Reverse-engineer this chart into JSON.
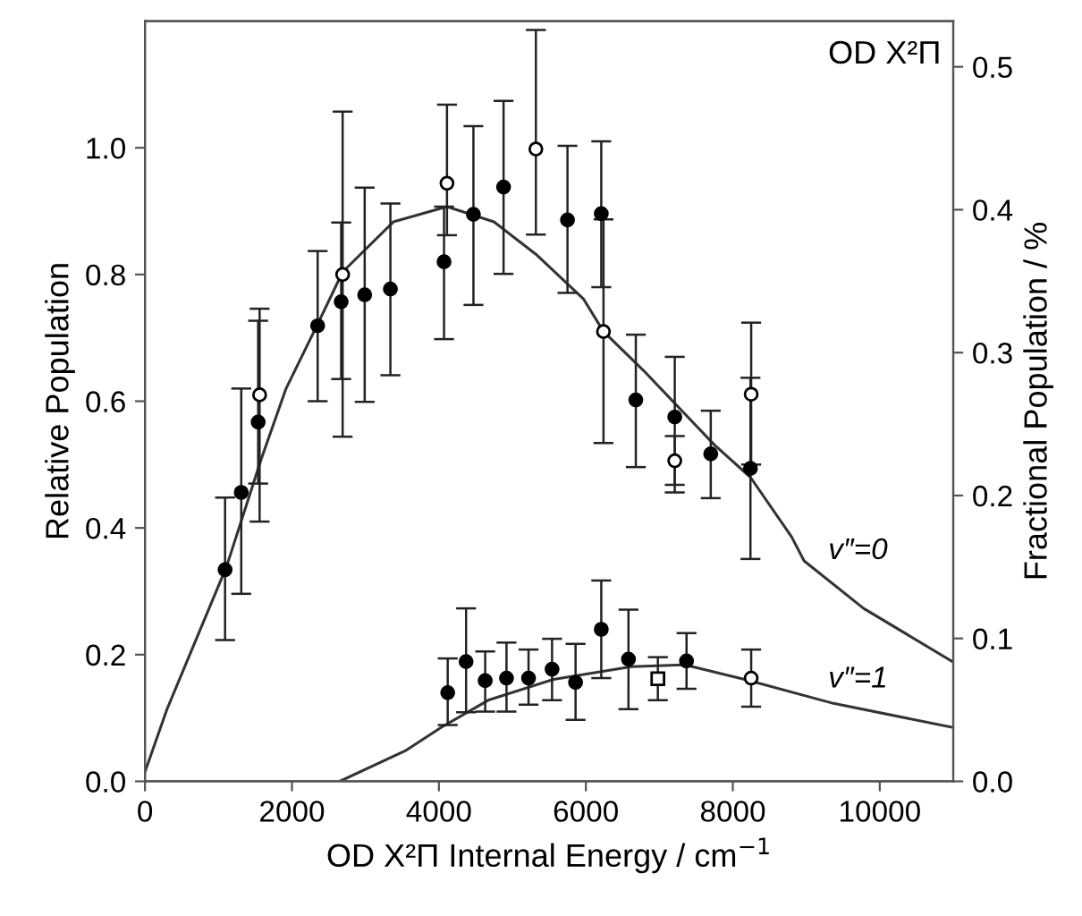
{
  "chart_data": {
    "type": "scatter",
    "xlabel": "OD X²Π Internal Energy / cm$^{−1}$",
    "ylabel": "Relative Population",
    "y2label": "Fractional Population / %",
    "xlim": [
      0,
      11000
    ],
    "xticks": [
      0,
      2000,
      4000,
      6000,
      8000,
      10000
    ],
    "ylim": [
      0,
      1.2
    ],
    "yticks": [
      {
        "value": 0,
        "label": "0.0"
      },
      0.2,
      0.4,
      0.6,
      0.8,
      {
        "value": 1,
        "label": "1.0"
      }
    ],
    "y2lim": [
      0,
      0.532
    ],
    "y2ticks": [
      {
        "value": 0,
        "label": "0.0"
      },
      0.1,
      0.2,
      0.3,
      0.4,
      0.5
    ],
    "grid": false,
    "legend": false,
    "annotations": [
      "OD X²Π"
    ],
    "series": [
      {
        "type": "line",
        "name": "v″=0",
        "color": "#333333",
        "marker": "none",
        "x": [
          0,
          300,
          1110,
          1580,
          1920,
          2360,
          2690,
          3380,
          4110,
          4750,
          5320,
          5970,
          6240,
          6780,
          7750,
          8240,
          8800,
          8970,
          9780,
          10990
        ],
        "values": [
          0.015,
          0.114,
          0.339,
          0.508,
          0.62,
          0.724,
          0.804,
          0.883,
          0.907,
          0.883,
          0.832,
          0.761,
          0.71,
          0.649,
          0.531,
          0.48,
          0.386,
          0.348,
          0.273,
          0.189
        ]
      },
      {
        "type": "line",
        "name": "v″=1",
        "color": "#333333",
        "marker": "none",
        "x": [
          2650,
          3540,
          4030,
          4670,
          5560,
          6620,
          7350,
          8160,
          9370,
          11000
        ],
        "values": [
          0,
          0.048,
          0.085,
          0.128,
          0.161,
          0.181,
          0.184,
          0.161,
          0.123,
          0.085
        ]
      },
      {
        "color": "#000000",
        "marker": "circle",
        "x": [
          1090,
          1310,
          1540,
          2350,
          2670,
          2990,
          3340,
          4070,
          4470,
          4880,
          5750,
          6210,
          6680,
          7210,
          7700,
          8240
        ],
        "values": [
          0.334,
          0.456,
          0.567,
          0.719,
          0.757,
          0.768,
          0.777,
          0.82,
          0.895,
          0.938,
          0.886,
          0.896,
          0.602,
          0.575,
          0.517,
          0.494
        ],
        "errors": [
          [
            0.223,
            0.448
          ],
          [
            0.296,
            0.62
          ],
          [
            0.47,
            0.727
          ],
          [
            0.6,
            0.837
          ],
          [
            0.635,
            0.882
          ],
          [
            0.599,
            0.937
          ],
          [
            0.641,
            0.912
          ],
          [
            0.698,
            0.907
          ],
          [
            0.752,
            1.034
          ],
          [
            0.801,
            1.074
          ],
          [
            0.771,
            1.003
          ],
          [
            0.78,
            1.01
          ],
          [
            0.496,
            0.705
          ],
          [
            0.456,
            0.67
          ],
          [
            0.447,
            0.585
          ],
          [
            0.351,
            0.637
          ]
        ]
      },
      {
        "color": "#ffffff",
        "marker": "circle",
        "x": [
          1560,
          2690,
          4110,
          5320,
          6240,
          7210,
          8250
        ],
        "values": [
          0.61,
          0.8,
          0.944,
          0.998,
          0.71,
          0.506,
          0.611
        ],
        "errors": [
          [
            0.41,
            0.746
          ],
          [
            0.544,
            1.057
          ],
          [
            0.862,
            1.068
          ],
          [
            0.863,
            1.186
          ],
          [
            0.534,
            0.887
          ],
          [
            0.468,
            0.545
          ],
          [
            0.5,
            0.724
          ]
        ]
      },
      {
        "color": "#000000",
        "marker": "circle",
        "x": [
          4120,
          4370,
          4630,
          4920,
          5220,
          5540,
          5860,
          6210,
          6580,
          7370
        ],
        "values": [
          0.14,
          0.189,
          0.159,
          0.163,
          0.163,
          0.177,
          0.156,
          0.24,
          0.193,
          0.19
        ],
        "errors": [
          [
            0.089,
            0.194
          ],
          [
            0.109,
            0.273
          ],
          [
            0.11,
            0.205
          ],
          [
            0.11,
            0.219
          ],
          [
            0.121,
            0.208
          ],
          [
            0.128,
            0.225
          ],
          [
            0.097,
            0.217
          ],
          [
            0.163,
            0.317
          ],
          [
            0.114,
            0.271
          ],
          [
            0.146,
            0.234
          ]
        ]
      },
      {
        "color": "#ffffff",
        "marker": "square",
        "x": [
          6980
        ],
        "values": [
          0.162
        ],
        "errors": [
          [
            0.128,
            0.196
          ]
        ]
      },
      {
        "color": "#ffffff",
        "marker": "circle",
        "x": [
          8250
        ],
        "values": [
          0.163
        ],
        "errors": [
          [
            0.118,
            0.208
          ]
        ]
      }
    ]
  }
}
